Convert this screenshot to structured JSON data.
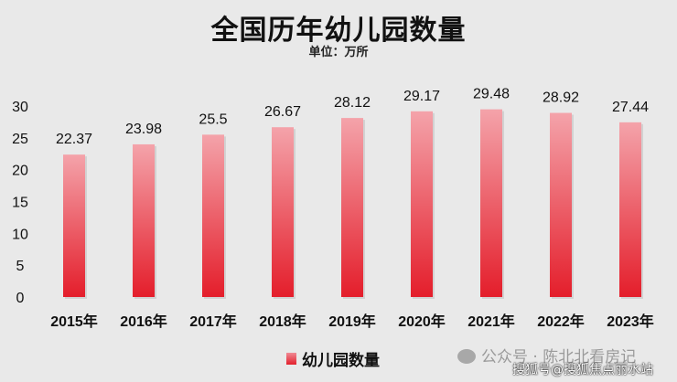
{
  "chart_data": {
    "type": "bar",
    "title": "全国历年幼儿园数量",
    "subtitle": "单位：万所",
    "categories": [
      "2015年",
      "2016年",
      "2017年",
      "2018年",
      "2019年",
      "2020年",
      "2021年",
      "2022年",
      "2023年"
    ],
    "series": [
      {
        "name": "幼儿园数量",
        "values": [
          22.37,
          23.98,
          25.5,
          26.67,
          28.12,
          29.17,
          29.48,
          28.92,
          27.44
        ]
      }
    ],
    "value_labels": [
      "22.37",
      "23.98",
      "25.5",
      "26.67",
      "28.12",
      "29.17",
      "29.48",
      "28.92",
      "27.44"
    ],
    "yticks": [
      0,
      5,
      10,
      15,
      20,
      25,
      30
    ],
    "ylim": [
      0,
      30
    ],
    "xlabel": "",
    "ylabel": "",
    "grid": false,
    "legend_position": "bottom",
    "colors": {
      "bar_top": "#f4a3aa",
      "bar_bottom": "#e41e2b"
    }
  },
  "watermarks": {
    "wechat": "公众号 · 陈北北看房记",
    "sohu": "搜狐号@搜狐焦点丽水站"
  }
}
